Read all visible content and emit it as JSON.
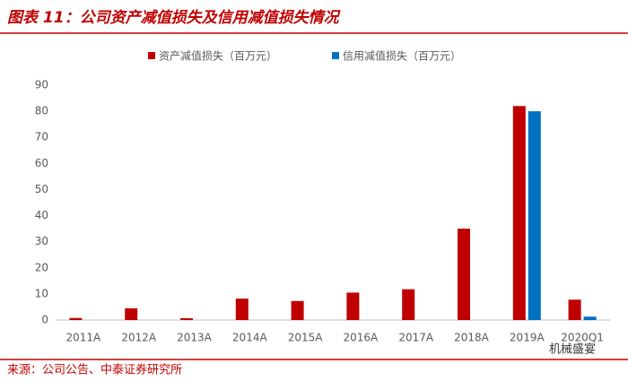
{
  "chart_data": {
    "type": "bar",
    "title": "图表 11：公司资产减值损失及信用减值损失情况",
    "source": "来源：公司公告、中泰证券研究所",
    "watermark": "机械盛宴",
    "categories": [
      "2011A",
      "2012A",
      "2013A",
      "2014A",
      "2015A",
      "2016A",
      "2017A",
      "2018A",
      "2019A",
      "2020Q1"
    ],
    "series": [
      {
        "name": "资产减值损失（百万元）",
        "color": "#c00000",
        "values": [
          0.8,
          4.5,
          0.7,
          8.2,
          7.3,
          10.5,
          11.8,
          35,
          82,
          7.8
        ]
      },
      {
        "name": "信用减值损失（百万元）",
        "color": "#0070c0",
        "values": [
          null,
          null,
          null,
          null,
          null,
          null,
          null,
          null,
          80,
          1.3
        ]
      }
    ],
    "ylim": [
      0,
      90
    ],
    "yticks": [
      0,
      10,
      20,
      30,
      40,
      50,
      60,
      70,
      80,
      90
    ],
    "grid": false
  }
}
